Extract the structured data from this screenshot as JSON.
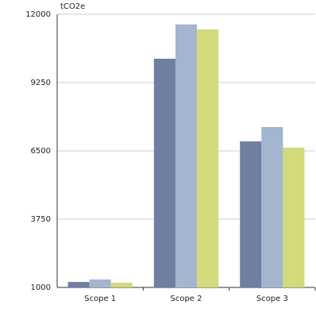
{
  "chart_data": {
    "type": "bar",
    "y_label": "tCO2e",
    "categories": [
      "Scope 1",
      "Scope 2",
      "Scope 3"
    ],
    "series": [
      {
        "color": "#6f7ea1",
        "values": [
          1220,
          10210,
          6880
        ]
      },
      {
        "color": "#a3b5cf",
        "values": [
          1320,
          11590,
          7460
        ]
      },
      {
        "color": "#d2da7c",
        "values": [
          1190,
          11390,
          6630
        ]
      }
    ],
    "ylim": [
      1000,
      12000
    ],
    "yticks": [
      1000,
      3750,
      6500,
      9250,
      12000
    ],
    "grid": true
  }
}
